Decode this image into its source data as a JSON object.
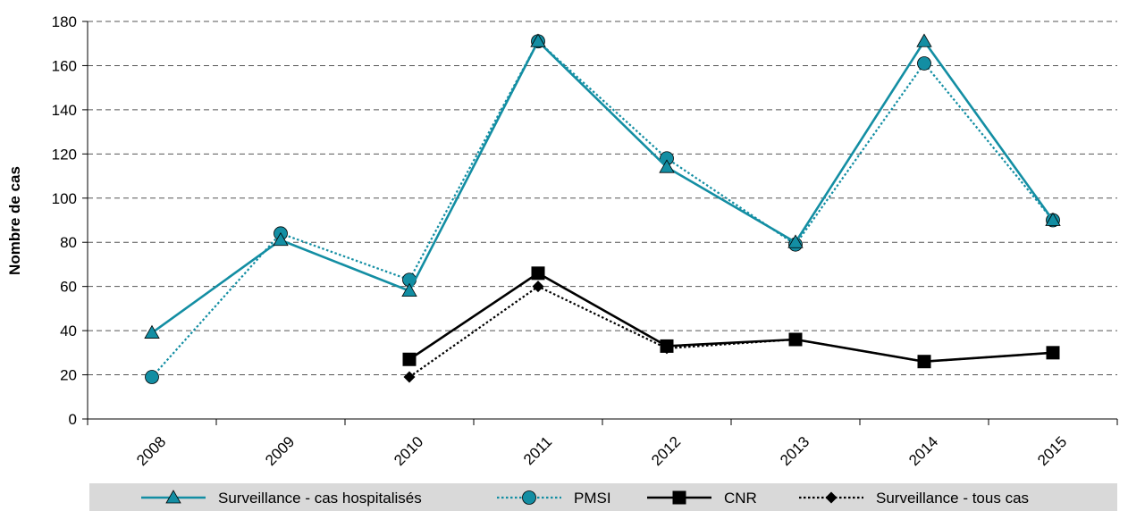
{
  "chart_data": {
    "type": "line",
    "categories": [
      "2008",
      "2009",
      "2010",
      "2011",
      "2012",
      "2013",
      "2014",
      "2015"
    ],
    "ylabel": "Nombre de cas",
    "xlabel": "",
    "ylim": [
      0,
      180
    ],
    "yticks": [
      0,
      20,
      40,
      60,
      80,
      100,
      120,
      140,
      160,
      180
    ],
    "grid": "horizontal dashed",
    "legend_position": "bottom",
    "series": [
      {
        "name": "Surveillance - cas hospitalisés",
        "values": [
          39,
          81,
          58,
          171,
          114,
          80,
          171,
          90
        ],
        "color": "#138ea3",
        "line_style": "solid",
        "marker": "triangle"
      },
      {
        "name": "PMSI",
        "values": [
          19,
          84,
          63,
          171,
          118,
          79,
          161,
          90
        ],
        "color": "#138ea3",
        "line_style": "dotted",
        "marker": "circle"
      },
      {
        "name": "CNR",
        "values": [
          null,
          null,
          27,
          66,
          33,
          36,
          26,
          30
        ],
        "color": "#000000",
        "line_style": "solid",
        "marker": "square"
      },
      {
        "name": "Surveillance - tous cas",
        "values": [
          null,
          null,
          19,
          60,
          32,
          36,
          26,
          30
        ],
        "color": "#000000",
        "line_style": "dotted",
        "marker": "diamond"
      }
    ]
  }
}
